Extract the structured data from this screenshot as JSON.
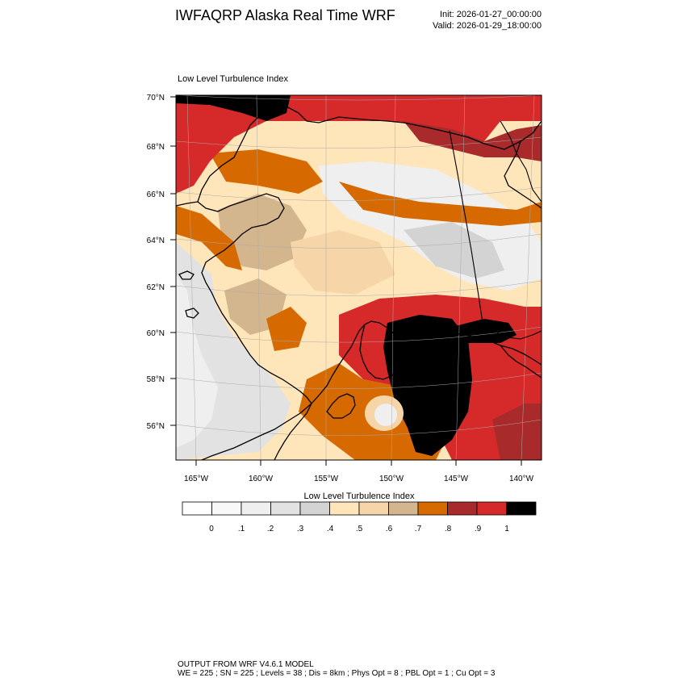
{
  "header": {
    "title": "IWFAQRP Alaska Real Time WRF",
    "init": "Init: 2026-01-27_00:00:00",
    "valid": "Valid: 2026-01-29_18:00:00"
  },
  "map": {
    "title": "Low Level Turbulence Index",
    "lat_labels": [
      "70°N",
      "68°N",
      "66°N",
      "64°N",
      "62°N",
      "60°N",
      "58°N",
      "56°N"
    ],
    "lon_labels": [
      "165°W",
      "160°W",
      "155°W",
      "150°W",
      "145°W",
      "140°W"
    ]
  },
  "colorbar": {
    "title": "Low Level Turbulence Index",
    "tick_labels": [
      "0",
      ".1",
      ".2",
      ".3",
      ".4",
      ".5",
      ".6",
      ".7",
      ".8",
      ".9",
      "1"
    ],
    "colors": [
      "#ffffff",
      "#f8f8f8",
      "#efefef",
      "#e2e2e2",
      "#d3d3d3",
      "#ffe6ba",
      "#f6d6a8",
      "#d4b68e",
      "#d66a00",
      "#a82a2a",
      "#d62a2a",
      "#000000"
    ]
  },
  "footer": {
    "line1": "OUTPUT FROM WRF V4.6.1 MODEL",
    "line2": "WE = 225 ; SN = 225 ; Levels = 38 ; Dis = 8km ; Phys Opt = 8 ; PBL Opt = 1 ; Cu Opt = 3"
  }
}
